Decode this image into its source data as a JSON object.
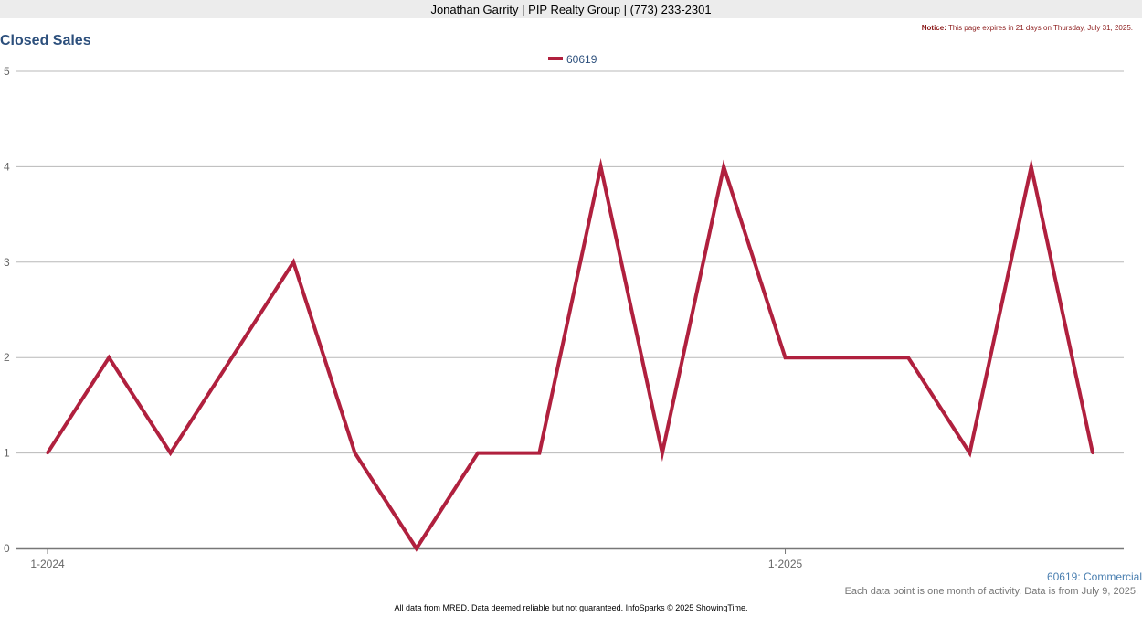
{
  "header": {
    "agent_line": "Jonathan Garrity | PIP Realty Group | (773) 233-2301"
  },
  "notice": {
    "label": "Notice:",
    "text": "This page expires in 21 days on Thursday, July 31, 2025."
  },
  "chart_data": {
    "type": "line",
    "title": "Closed Sales",
    "x": [
      "2024-01",
      "2024-02",
      "2024-03",
      "2024-04",
      "2024-05",
      "2024-06",
      "2024-07",
      "2024-08",
      "2024-09",
      "2024-10",
      "2024-11",
      "2024-12",
      "2025-01",
      "2025-02",
      "2025-03",
      "2025-04",
      "2025-05",
      "2025-06"
    ],
    "x_tick_labels": [
      {
        "index": 0,
        "label": "1-2024"
      },
      {
        "index": 12,
        "label": "1-2025"
      }
    ],
    "series": [
      {
        "name": "60619",
        "color": "#b0203e",
        "values": [
          1,
          2,
          1,
          2,
          3,
          1,
          0,
          1,
          1,
          4,
          1,
          4,
          2,
          2,
          2,
          1,
          4,
          1
        ]
      }
    ],
    "ylim": [
      0,
      5
    ],
    "yticks": [
      0,
      1,
      2,
      3,
      4,
      5
    ],
    "grid": true,
    "legend_position": "top-center"
  },
  "series_label": "60619: Commercial",
  "data_note": "Each data point is one month of activity. Data is from July 9, 2025.",
  "footer": "All data from MRED. Data deemed reliable but not guaranteed. InfoSparks © 2025 ShowingTime."
}
